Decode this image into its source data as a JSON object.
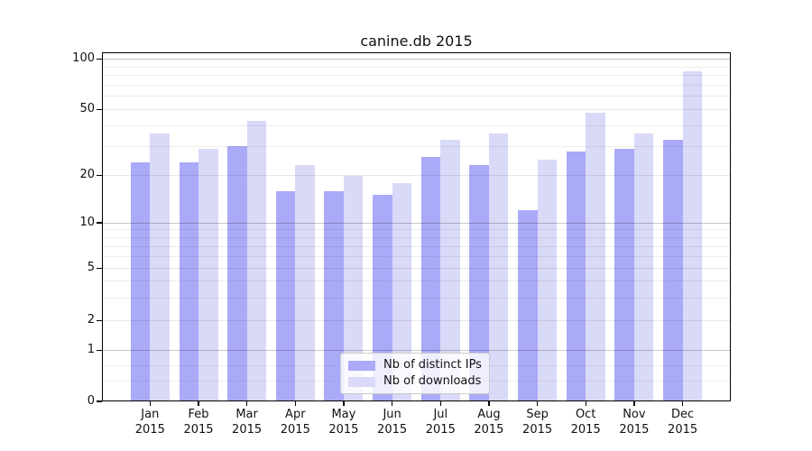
{
  "title": "canine.db 2015",
  "legend": {
    "items": [
      {
        "label": "Nb of distinct IPs",
        "color": "#aaaaf8"
      },
      {
        "label": "Nb of downloads",
        "color": "#d9d9f8"
      }
    ],
    "position": "lower center"
  },
  "chart_data": {
    "type": "bar",
    "title": "canine.db 2015",
    "categories": [
      "Jan",
      "Feb",
      "Mar",
      "Apr",
      "May",
      "Jun",
      "Jul",
      "Aug",
      "Sep",
      "Oct",
      "Nov",
      "Dec"
    ],
    "year_label": "2015",
    "series": [
      {
        "name": "Nb of distinct IPs",
        "color": "#aaaaf8",
        "values": [
          24,
          24,
          30,
          16,
          16,
          15,
          26,
          23,
          12,
          28,
          29,
          33
        ]
      },
      {
        "name": "Nb of downloads",
        "color": "#d9d9f8",
        "values": [
          36,
          29,
          43,
          23,
          20,
          18,
          33,
          36,
          25,
          48,
          36,
          85
        ]
      }
    ],
    "xlabel": "",
    "ylabel": "",
    "yscale": "asinh (linear near 0, logarithmic above)",
    "ylim": [
      0,
      108
    ],
    "yticks": [
      0,
      1,
      2,
      5,
      10,
      20,
      50,
      100
    ],
    "major_decade_ticks": [
      1,
      10,
      100
    ],
    "labeled_minor_ticks": [
      2,
      5,
      20,
      50
    ],
    "minor_gridlines": [
      0.4,
      0.7,
      3,
      4,
      6,
      7,
      8,
      9,
      30,
      40,
      60,
      70,
      80,
      90
    ],
    "grid": "on",
    "legend_position": "lower center",
    "background": "#ffffff"
  }
}
